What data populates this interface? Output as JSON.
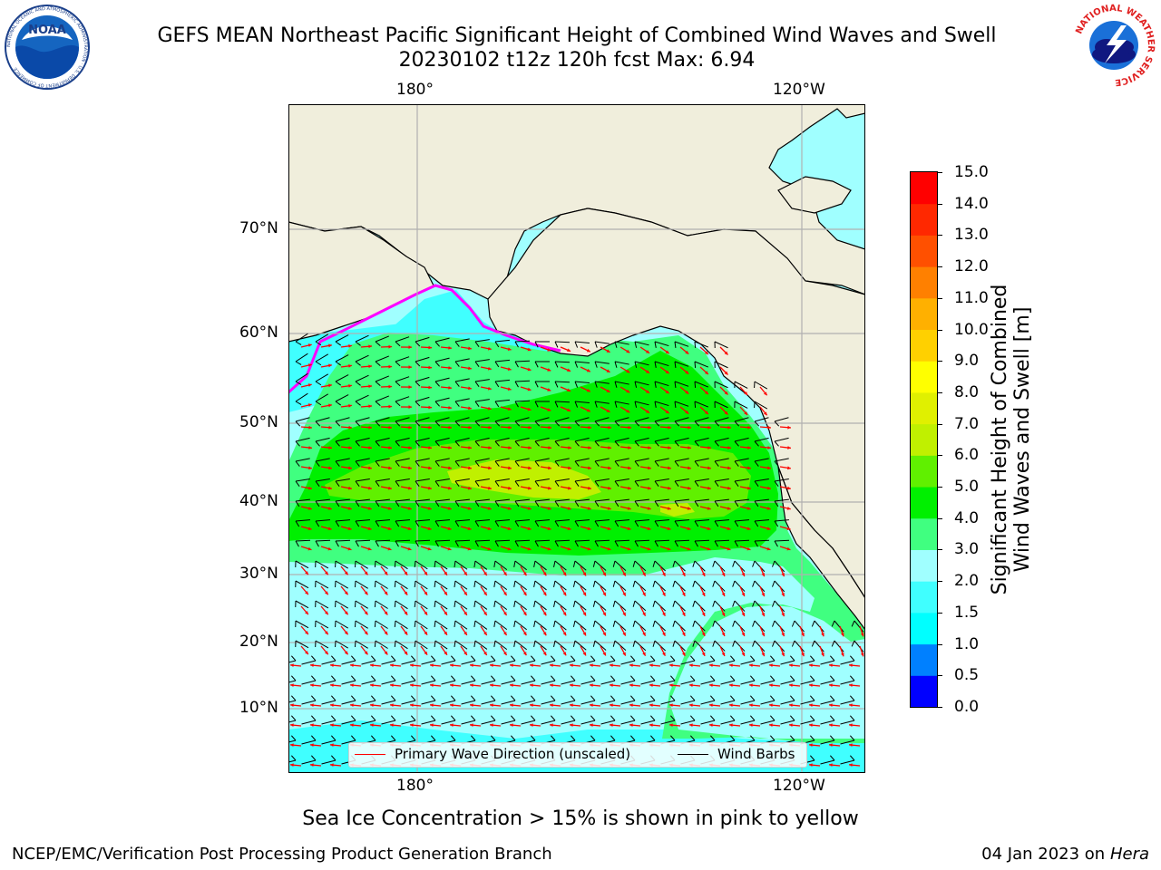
{
  "header": {
    "title_line1": "GEFS MEAN Northeast Pacific Significant Height of Combined Wind Waves and Swell",
    "title_line2": "20230102 t12z 120h fcst   Max: 6.94"
  },
  "axes": {
    "lon_ticks": [
      "180°",
      "120°W"
    ],
    "lat_ticks": [
      "70°N",
      "60°N",
      "50°N",
      "40°N",
      "30°N",
      "20°N",
      "10°N"
    ]
  },
  "legend": {
    "wave_direction": "Primary Wave Direction (unscaled)",
    "wind_barbs": "Wind Barbs",
    "wave_color": "#ff0000",
    "barb_color": "#000000"
  },
  "colorbar": {
    "label_line1": "Significant Height of Combined",
    "label_line2": "Wind Waves and Swell [m]",
    "ticks": [
      "15.0",
      "14.0",
      "13.0",
      "12.0",
      "11.0",
      "10.0",
      "9.0",
      "8.0",
      "7.0",
      "6.0",
      "5.0",
      "4.0",
      "3.0",
      "2.0",
      "1.5",
      "1.0",
      "0.5",
      "0.0"
    ],
    "colors_bottom_to_top": [
      "#0000ff",
      "#0080ff",
      "#00ffff",
      "#40ffff",
      "#a0ffff",
      "#40ff80",
      "#00f000",
      "#60f000",
      "#c0f000",
      "#e0f000",
      "#ffff00",
      "#ffd000",
      "#ffb000",
      "#ff8000",
      "#ff5000",
      "#ff2800",
      "#ff0000"
    ]
  },
  "map_colors": {
    "land": "#f0eedc",
    "ocean_light": "#a0ffff",
    "ocean_cyan": "#40ffff",
    "band_3_4": "#40ff80",
    "band_4_5": "#00f000",
    "band_5_6": "#60f000",
    "band_6_7": "#c0f000",
    "ice_edge": "#ff00ff",
    "grid": "#b0b0b0"
  },
  "logos": {
    "noaa_text": "NOAA",
    "noaa_ring": "NATIONAL OCEANIC AND ATMOSPHERIC ADMINISTRATION · U.S. DEPARTMENT OF COMMERCE",
    "nws_ring": "NATIONAL WEATHER SERVICE"
  },
  "note": "Sea Ice Concentration > 15% is shown in pink to yellow",
  "footer": {
    "left": "NCEP/EMC/Verification Post Processing Product Generation Branch",
    "date": "04 Jan 2023 on ",
    "machine": "Hera"
  }
}
